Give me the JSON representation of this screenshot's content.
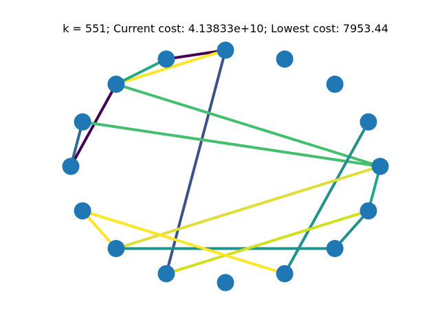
{
  "title": "k = 551; Current cost: 4.13833e+10; Lowest cost: 7953.44",
  "node_color": "#1f77b4",
  "chart_data": {
    "type": "graph",
    "layout": "circular",
    "node_count": 16,
    "edges": [
      {
        "from": 4,
        "to": 5,
        "color": "#440154"
      },
      {
        "from": 4,
        "to": 6,
        "color": "#fde725"
      },
      {
        "from": 4,
        "to": 11,
        "color": "#3b528b"
      },
      {
        "from": 5,
        "to": 6,
        "color": "#22a884"
      },
      {
        "from": 6,
        "to": 8,
        "color": "#440154"
      },
      {
        "from": 6,
        "to": 0,
        "color": "#44bf70"
      },
      {
        "from": 7,
        "to": 0,
        "color": "#44bf70"
      },
      {
        "from": 7,
        "to": 8,
        "color": "#31688e"
      },
      {
        "from": 1,
        "to": 13,
        "color": "#21918c"
      },
      {
        "from": 0,
        "to": 10,
        "color": "#e1dd37"
      },
      {
        "from": 0,
        "to": 15,
        "color": "#22a884"
      },
      {
        "from": 10,
        "to": 14,
        "color": "#21918c"
      },
      {
        "from": 14,
        "to": 15,
        "color": "#21918c"
      },
      {
        "from": 15,
        "to": 11,
        "color": "#d0e11c"
      },
      {
        "from": 10,
        "to": 9,
        "color": "#fde725"
      },
      {
        "from": 9,
        "to": 13,
        "color": "#fde725"
      }
    ]
  }
}
